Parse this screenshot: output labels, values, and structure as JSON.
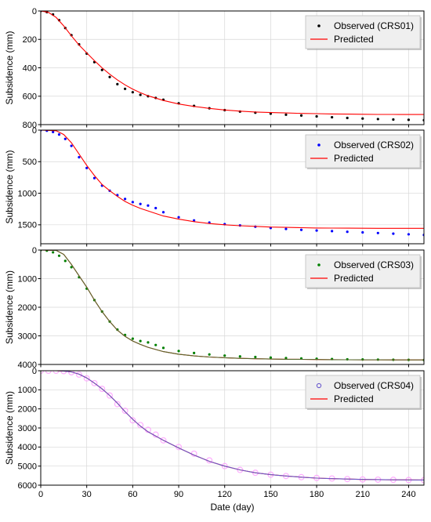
{
  "xlabel": "Date (day)",
  "x_ticks": [
    0,
    30,
    60,
    90,
    120,
    150,
    180,
    210,
    240
  ],
  "xlim": [
    0,
    250
  ],
  "predicted_label": "Predicted",
  "chart_data": [
    {
      "type": "line",
      "ylabel": "Subsidence (mm)",
      "ylim": [
        0,
        800
      ],
      "y_inverted": true,
      "y_ticks": [
        0,
        200,
        400,
        600,
        800
      ],
      "grid": true,
      "legend_position": "top-right",
      "series": [
        {
          "name": "Observed (CRS01)",
          "kind": "scatter",
          "color": "#000000",
          "marker": "dot",
          "x": [
            0,
            4,
            8,
            12,
            16,
            20,
            25,
            30,
            35,
            40,
            45,
            50,
            55,
            60,
            65,
            70,
            75,
            80,
            90,
            100,
            110,
            120,
            130,
            140,
            150,
            160,
            170,
            180,
            190,
            200,
            210,
            220,
            230,
            240,
            250
          ],
          "y": [
            0,
            8,
            25,
            65,
            120,
            170,
            235,
            300,
            360,
            415,
            465,
            515,
            548,
            572,
            590,
            600,
            612,
            625,
            650,
            668,
            685,
            698,
            708,
            716,
            723,
            730,
            736,
            742,
            748,
            753,
            757,
            761,
            764,
            766,
            769
          ]
        },
        {
          "name": "Predicted",
          "kind": "line",
          "color": "#ff0000",
          "x": [
            0,
            5,
            10,
            15,
            20,
            25,
            30,
            35,
            40,
            45,
            50,
            55,
            60,
            65,
            70,
            80,
            90,
            100,
            110,
            120,
            130,
            140,
            150,
            160,
            170,
            180,
            190,
            200,
            210,
            220,
            230,
            240,
            250
          ],
          "y": [
            0,
            10,
            45,
            105,
            175,
            240,
            295,
            350,
            400,
            445,
            485,
            520,
            550,
            575,
            597,
            630,
            655,
            672,
            686,
            697,
            705,
            711,
            715,
            718,
            721,
            723,
            725,
            726,
            727,
            728,
            728,
            729,
            729
          ]
        }
      ]
    },
    {
      "type": "line",
      "ylabel": "Subsidence (mm)",
      "ylim": [
        0,
        1800
      ],
      "y_inverted": true,
      "y_ticks": [
        0,
        500,
        1000,
        1500
      ],
      "grid": true,
      "legend_position": "top-right",
      "series": [
        {
          "name": "Observed (CRS02)",
          "kind": "scatter",
          "color": "#0000ff",
          "marker": "dot",
          "x": [
            0,
            4,
            8,
            12,
            16,
            20,
            25,
            30,
            35,
            40,
            45,
            50,
            55,
            60,
            65,
            70,
            75,
            80,
            90,
            100,
            110,
            120,
            130,
            140,
            150,
            160,
            170,
            180,
            190,
            200,
            210,
            220,
            230,
            240,
            250
          ],
          "y": [
            0,
            10,
            30,
            70,
            140,
            250,
            430,
            600,
            760,
            880,
            960,
            1030,
            1090,
            1140,
            1170,
            1195,
            1235,
            1300,
            1380,
            1430,
            1465,
            1490,
            1510,
            1530,
            1550,
            1565,
            1580,
            1590,
            1600,
            1610,
            1620,
            1630,
            1640,
            1650,
            1660
          ]
        },
        {
          "name": "Predicted",
          "kind": "line",
          "color": "#ff0000",
          "x": [
            0,
            10,
            15,
            20,
            25,
            30,
            35,
            40,
            45,
            50,
            55,
            60,
            65,
            70,
            80,
            90,
            100,
            110,
            120,
            130,
            140,
            150,
            160,
            170,
            180,
            190,
            200,
            210,
            220,
            230,
            240,
            250
          ],
          "y": [
            0,
            10,
            70,
            200,
            380,
            560,
            720,
            860,
            960,
            1050,
            1130,
            1190,
            1240,
            1280,
            1360,
            1410,
            1450,
            1480,
            1500,
            1515,
            1525,
            1535,
            1540,
            1545,
            1550,
            1552,
            1553,
            1554,
            1555,
            1555,
            1555,
            1555
          ]
        }
      ]
    },
    {
      "type": "line",
      "ylabel": "Subsidence (mm)",
      "ylim": [
        0,
        4000
      ],
      "y_inverted": true,
      "y_ticks": [
        0,
        1000,
        2000,
        3000,
        4000
      ],
      "grid": true,
      "legend_position": "top-right",
      "series": [
        {
          "name": "Observed (CRS03)",
          "kind": "scatter",
          "color": "#008000",
          "marker": "dot",
          "x": [
            0,
            4,
            8,
            12,
            16,
            20,
            25,
            30,
            35,
            40,
            45,
            50,
            55,
            60,
            65,
            70,
            75,
            80,
            90,
            100,
            110,
            120,
            130,
            140,
            150,
            160,
            170,
            180,
            190,
            200,
            210,
            220,
            230,
            240,
            250
          ],
          "y": [
            0,
            20,
            80,
            200,
            380,
            600,
            950,
            1350,
            1750,
            2150,
            2500,
            2780,
            2970,
            3100,
            3180,
            3230,
            3320,
            3420,
            3530,
            3600,
            3650,
            3690,
            3720,
            3740,
            3760,
            3775,
            3790,
            3800,
            3810,
            3820,
            3825,
            3830,
            3835,
            3840,
            3845
          ]
        },
        {
          "name": "Predicted",
          "kind": "line",
          "color": "#ff0000",
          "x": [
            0,
            10,
            15,
            20,
            25,
            30,
            35,
            40,
            45,
            50,
            55,
            60,
            65,
            70,
            80,
            90,
            100,
            110,
            120,
            130,
            140,
            150,
            160,
            170,
            180,
            190,
            200,
            210,
            220,
            230,
            240,
            250
          ],
          "y": [
            0,
            10,
            150,
            500,
            900,
            1300,
            1750,
            2150,
            2500,
            2800,
            3020,
            3180,
            3300,
            3400,
            3550,
            3640,
            3700,
            3740,
            3765,
            3785,
            3800,
            3810,
            3818,
            3823,
            3828,
            3832,
            3835,
            3837,
            3839,
            3840,
            3841,
            3842
          ]
        },
        {
          "name": "Predicted",
          "kind": "line",
          "color": "#556b2f",
          "x": [
            0,
            10,
            15,
            20,
            25,
            30,
            35,
            40,
            45,
            50,
            55,
            60,
            65,
            70,
            80,
            90,
            100,
            110,
            120,
            130,
            140,
            150,
            160,
            170,
            180,
            190,
            200,
            210,
            220,
            230,
            240,
            250
          ],
          "y": [
            0,
            10,
            150,
            500,
            900,
            1300,
            1750,
            2150,
            2500,
            2800,
            3020,
            3180,
            3300,
            3400,
            3550,
            3640,
            3700,
            3740,
            3765,
            3785,
            3800,
            3810,
            3818,
            3823,
            3828,
            3832,
            3835,
            3837,
            3839,
            3840,
            3841,
            3842
          ]
        }
      ]
    },
    {
      "type": "line",
      "ylabel": "Subsidence (mm)",
      "ylim": [
        0,
        6000
      ],
      "y_inverted": true,
      "y_ticks": [
        0,
        1000,
        2000,
        3000,
        4000,
        5000,
        6000
      ],
      "grid": true,
      "legend_position": "top-right",
      "series": [
        {
          "name": "Observed (CRS04)",
          "kind": "scatter",
          "color": "#ff99ff",
          "marker": "ring",
          "x": [
            0,
            5,
            10,
            15,
            20,
            25,
            30,
            35,
            40,
            45,
            50,
            55,
            60,
            65,
            70,
            75,
            80,
            90,
            100,
            110,
            120,
            130,
            140,
            150,
            160,
            170,
            180,
            190,
            200,
            210,
            220,
            230,
            240,
            250
          ],
          "y": [
            0,
            0,
            0,
            20,
            80,
            200,
            400,
            650,
            950,
            1300,
            1750,
            2100,
            2600,
            2850,
            3100,
            3350,
            3650,
            4000,
            4350,
            4700,
            5000,
            5200,
            5350,
            5450,
            5520,
            5580,
            5620,
            5650,
            5680,
            5700,
            5710,
            5720,
            5730,
            5740
          ]
        },
        {
          "name": "Predicted",
          "kind": "line",
          "color": "#ff0000",
          "x": [
            0,
            10,
            15,
            20,
            25,
            30,
            35,
            40,
            45,
            50,
            55,
            60,
            65,
            70,
            80,
            90,
            100,
            110,
            120,
            130,
            140,
            150,
            160,
            170,
            180,
            190,
            200,
            210,
            220,
            230,
            240,
            250
          ],
          "y": [
            0,
            0,
            20,
            60,
            180,
            380,
            650,
            950,
            1300,
            1700,
            2150,
            2550,
            2900,
            3200,
            3650,
            4050,
            4420,
            4750,
            5000,
            5200,
            5350,
            5450,
            5520,
            5580,
            5630,
            5660,
            5680,
            5700,
            5710,
            5720,
            5725,
            5730
          ]
        },
        {
          "name": "Predicted",
          "kind": "line",
          "color": "#6a5acd",
          "x": [
            0,
            10,
            15,
            20,
            25,
            30,
            35,
            40,
            45,
            50,
            55,
            60,
            65,
            70,
            80,
            90,
            100,
            110,
            120,
            130,
            140,
            150,
            160,
            170,
            180,
            190,
            200,
            210,
            220,
            230,
            240,
            250
          ],
          "y": [
            0,
            0,
            20,
            60,
            180,
            380,
            650,
            950,
            1300,
            1700,
            2150,
            2550,
            2900,
            3200,
            3650,
            4050,
            4420,
            4750,
            5000,
            5200,
            5350,
            5450,
            5520,
            5580,
            5630,
            5660,
            5680,
            5700,
            5710,
            5720,
            5725,
            5730
          ]
        }
      ]
    }
  ]
}
